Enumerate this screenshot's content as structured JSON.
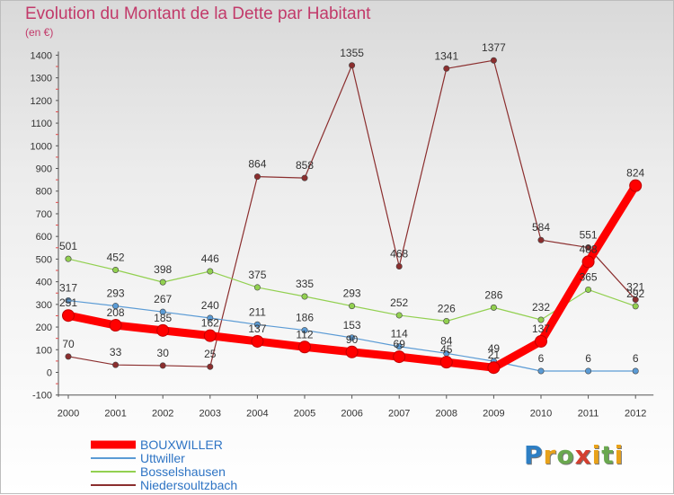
{
  "title": "Evolution du Montant de la Dette par Habitant",
  "subtitle": "(en €)",
  "logo": {
    "letters": [
      "P",
      "r",
      "o",
      "x",
      "i",
      "t",
      "i"
    ],
    "colors": [
      "#2e7fc4",
      "#e8a21a",
      "#6aa84f",
      "#d43f2f",
      "#e8a21a",
      "#6aa84f",
      "#e8a21a"
    ]
  },
  "chart_data": {
    "type": "line",
    "title": "Evolution du Montant de la Dette par Habitant",
    "ylabel": "(en €)",
    "xlabel": "",
    "ylim": [
      -100,
      1400
    ],
    "yticks": [
      -100,
      0,
      100,
      200,
      300,
      400,
      500,
      600,
      700,
      800,
      900,
      1000,
      1100,
      1200,
      1300,
      1400
    ],
    "grid": false,
    "legend_position": "bottom-left",
    "x": [
      "2000",
      "2001",
      "2002",
      "2003",
      "2004",
      "2005",
      "2006",
      "2007",
      "2008",
      "2009",
      "2010",
      "2011",
      "2012"
    ],
    "series": [
      {
        "name": "BOUXWILLER",
        "color": "#ff0000",
        "values": [
          251,
          208,
          185,
          162,
          137,
          112,
          90,
          69,
          45,
          21,
          137,
          488,
          824
        ],
        "labels": [
          "251",
          "208",
          "185",
          "162",
          "137",
          "112",
          "90",
          "69",
          "45",
          "21",
          "137",
          "488",
          "824"
        ]
      },
      {
        "name": "Uttwiller",
        "color": "#5b9bd5",
        "values": [
          317,
          293,
          267,
          240,
          211,
          186,
          153,
          114,
          84,
          49,
          6,
          6,
          6
        ],
        "labels": [
          "317",
          "293",
          "267",
          "240",
          "211",
          "186",
          "153",
          "114",
          "84",
          "49",
          "6",
          "6",
          "6"
        ]
      },
      {
        "name": "Bosselshausen",
        "color": "#92d050",
        "values": [
          501,
          452,
          398,
          446,
          375,
          335,
          293,
          252,
          226,
          286,
          232,
          365,
          292
        ],
        "labels": [
          "501",
          "452",
          "398",
          "446",
          "375",
          "335",
          "293",
          "252",
          "226",
          "286",
          "232",
          "365",
          "292"
        ]
      },
      {
        "name": "Niedersoultzbach",
        "color": "#8b2e2e",
        "values": [
          70,
          33,
          30,
          25,
          864,
          858,
          1355,
          468,
          1341,
          1377,
          584,
          551,
          321
        ],
        "labels": [
          "70",
          "33",
          "30",
          "25",
          "864",
          "858",
          "1355",
          "468",
          "1341",
          "1377",
          "584",
          "551",
          "321"
        ]
      }
    ]
  }
}
